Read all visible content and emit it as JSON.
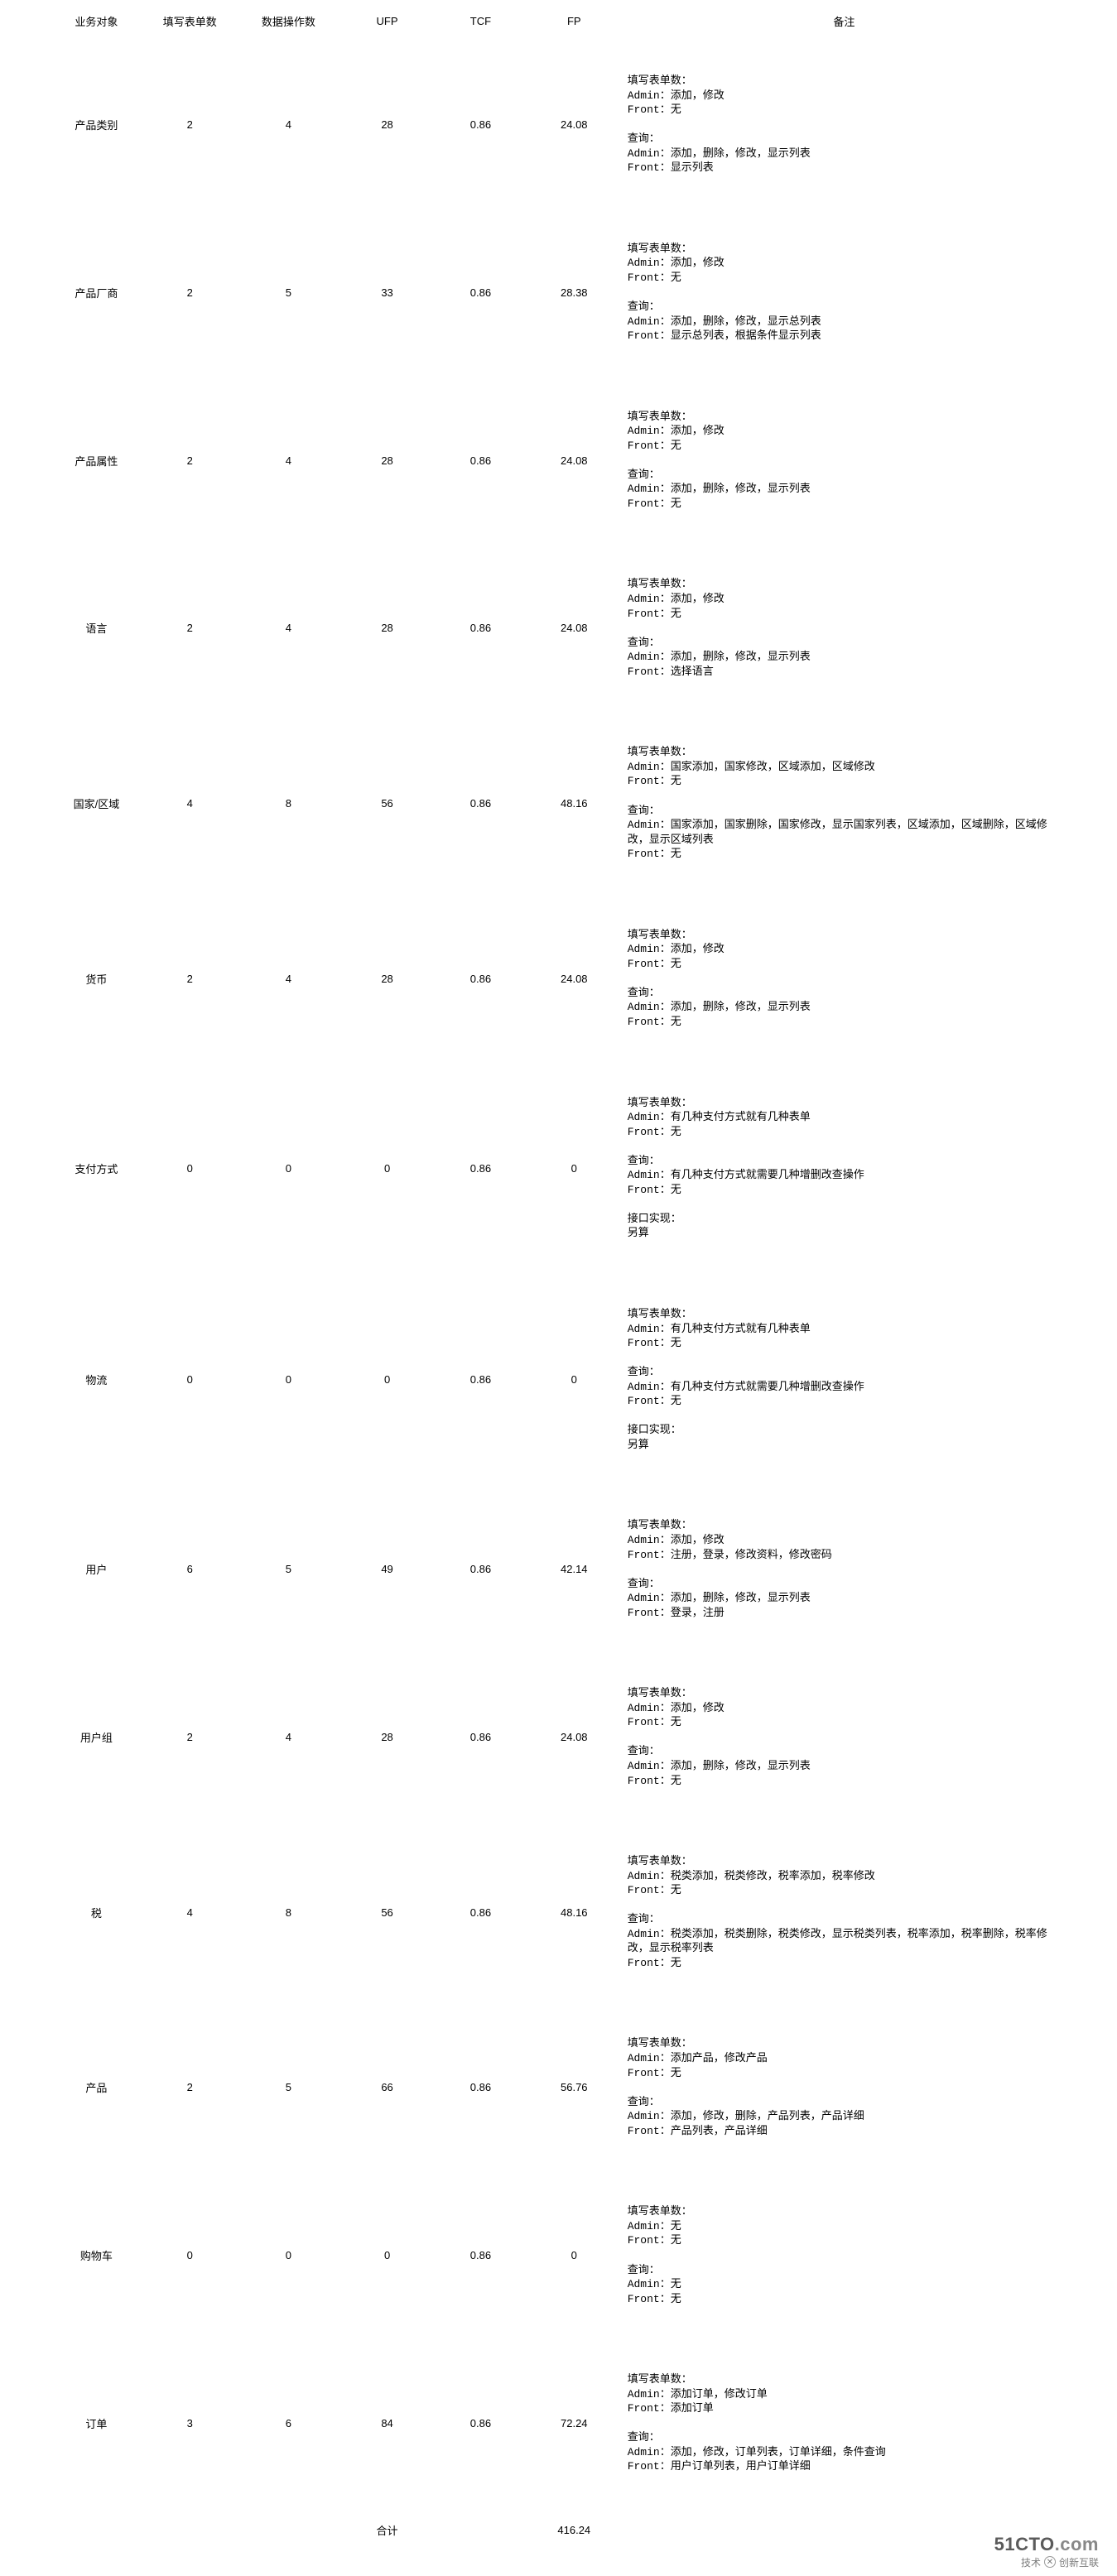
{
  "headers": {
    "obj": "业务对象",
    "forms": "填写表单数",
    "ops": "数据操作数",
    "ufp": "UFP",
    "tcf": "TCF",
    "fp": "FP",
    "notes": "备注"
  },
  "total": {
    "label": "合计",
    "value": "416.24"
  },
  "rows": [
    {
      "obj": "产品类别",
      "forms": "2",
      "ops": "4",
      "ufp": "28",
      "tcf": "0.86",
      "fp": "24.08",
      "notes": "填写表单数：\nAdmin：添加，修改\nFront：无\n\n查询：\nAdmin：添加，删除，修改，显示列表\nFront：显示列表"
    },
    {
      "obj": "产品厂商",
      "forms": "2",
      "ops": "5",
      "ufp": "33",
      "tcf": "0.86",
      "fp": "28.38",
      "notes": "填写表单数：\nAdmin：添加，修改\nFront：无\n\n查询：\nAdmin：添加，删除，修改，显示总列表\nFront：显示总列表，根据条件显示列表"
    },
    {
      "obj": "产品属性",
      "forms": "2",
      "ops": "4",
      "ufp": "28",
      "tcf": "0.86",
      "fp": "24.08",
      "notes": "填写表单数：\nAdmin：添加，修改\nFront：无\n\n查询：\nAdmin：添加，删除，修改，显示列表\nFront：无"
    },
    {
      "obj": "语言",
      "forms": "2",
      "ops": "4",
      "ufp": "28",
      "tcf": "0.86",
      "fp": "24.08",
      "notes": "填写表单数：\nAdmin：添加，修改\nFront：无\n\n查询：\nAdmin：添加，删除，修改，显示列表\nFront：选择语言"
    },
    {
      "obj": "国家/区域",
      "forms": "4",
      "ops": "8",
      "ufp": "56",
      "tcf": "0.86",
      "fp": "48.16",
      "notes": "填写表单数：\nAdmin：国家添加，国家修改，区域添加，区域修改\nFront：无\n\n查询：\nAdmin：国家添加，国家删除，国家修改，显示国家列表，区域添加，区域删除，区域修改，显示区域列表\nFront：无"
    },
    {
      "obj": "货币",
      "forms": "2",
      "ops": "4",
      "ufp": "28",
      "tcf": "0.86",
      "fp": "24.08",
      "notes": "填写表单数：\nAdmin：添加，修改\nFront：无\n\n查询：\nAdmin：添加，删除，修改，显示列表\nFront：无"
    },
    {
      "obj": "支付方式",
      "forms": "0",
      "ops": "0",
      "ufp": "0",
      "tcf": "0.86",
      "fp": "0",
      "notes": "填写表单数：\nAdmin：有几种支付方式就有几种表单\nFront：无\n\n查询：\nAdmin：有几种支付方式就需要几种增删改查操作\nFront：无\n\n接口实现：\n另算"
    },
    {
      "obj": "物流",
      "forms": "0",
      "ops": "0",
      "ufp": "0",
      "tcf": "0.86",
      "fp": "0",
      "notes": "填写表单数：\nAdmin：有几种支付方式就有几种表单\nFront：无\n\n查询：\nAdmin：有几种支付方式就需要几种增删改查操作\nFront：无\n\n接口实现：\n另算"
    },
    {
      "obj": "用户",
      "forms": "6",
      "ops": "5",
      "ufp": "49",
      "tcf": "0.86",
      "fp": "42.14",
      "notes": "填写表单数：\nAdmin：添加，修改\nFront：注册，登录，修改资料，修改密码\n\n查询：\nAdmin：添加，删除，修改，显示列表\nFront：登录，注册"
    },
    {
      "obj": "用户组",
      "forms": "2",
      "ops": "4",
      "ufp": "28",
      "tcf": "0.86",
      "fp": "24.08",
      "notes": "填写表单数：\nAdmin：添加，修改\nFront：无\n\n查询：\nAdmin：添加，删除，修改，显示列表\nFront：无"
    },
    {
      "obj": "税",
      "forms": "4",
      "ops": "8",
      "ufp": "56",
      "tcf": "0.86",
      "fp": "48.16",
      "notes": "填写表单数：\nAdmin：税类添加，税类修改，税率添加，税率修改\nFront：无\n\n查询：\nAdmin：税类添加，税类删除，税类修改，显示税类列表，税率添加，税率删除，税率修改，显示税率列表\nFront：无"
    },
    {
      "obj": "产品",
      "forms": "2",
      "ops": "5",
      "ufp": "66",
      "tcf": "0.86",
      "fp": "56.76",
      "notes": "填写表单数：\nAdmin：添加产品，修改产品\nFront：无\n\n查询：\nAdmin：添加，修改，删除，产品列表，产品详细\nFront：产品列表，产品详细"
    },
    {
      "obj": "购物车",
      "forms": "0",
      "ops": "0",
      "ufp": "0",
      "tcf": "0.86",
      "fp": "0",
      "notes": "填写表单数：\nAdmin：无\nFront：无\n\n查询：\nAdmin：无\nFront：无"
    },
    {
      "obj": "订单",
      "forms": "3",
      "ops": "6",
      "ufp": "84",
      "tcf": "0.86",
      "fp": "72.24",
      "notes": "填写表单数：\nAdmin：添加订单，修改订单\nFront：添加订单\n\n查询：\nAdmin：添加，修改，订单列表，订单详细，条件查询\nFront：用户订单列表，用户订单详细"
    }
  ],
  "watermark": {
    "site": "51CTO",
    "dotcom": ".com",
    "sub1": "技术",
    "sub2": "创新互联"
  }
}
